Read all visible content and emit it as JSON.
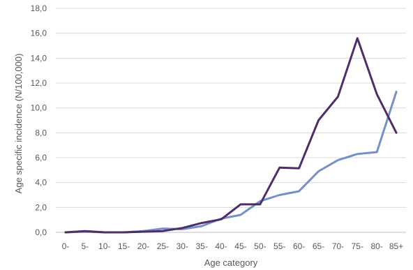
{
  "chart_data": {
    "type": "line",
    "xlabel": "Age category",
    "ylabel": "Age specific incidence (N/100,000)",
    "categories": [
      "0-",
      "5-",
      "10-",
      "15-",
      "20-",
      "25-",
      "30-",
      "35-",
      "40-",
      "45-",
      "50-",
      "55-",
      "60-",
      "65-",
      "70-",
      "75-",
      "80-",
      "85+"
    ],
    "ylim": [
      0,
      18
    ],
    "yticks": [
      "0,0",
      "2,0",
      "4,0",
      "6,0",
      "8,0",
      "10,0",
      "12,0",
      "14,0",
      "16,0",
      "18,0"
    ],
    "grid": "horizontal",
    "legend": "none",
    "series": [
      {
        "color": "#7591c7",
        "values": [
          0.0,
          0.05,
          0.0,
          0.0,
          0.1,
          0.3,
          0.25,
          0.5,
          1.1,
          1.4,
          2.5,
          3.0,
          3.3,
          4.9,
          5.8,
          6.3,
          6.45,
          11.3
        ]
      },
      {
        "color": "#4f2d6a",
        "values": [
          0.0,
          0.1,
          0.0,
          0.0,
          0.05,
          0.1,
          0.35,
          0.75,
          1.05,
          2.25,
          2.25,
          5.2,
          5.15,
          9.0,
          10.9,
          15.6,
          11.1,
          8.0
        ]
      }
    ]
  }
}
